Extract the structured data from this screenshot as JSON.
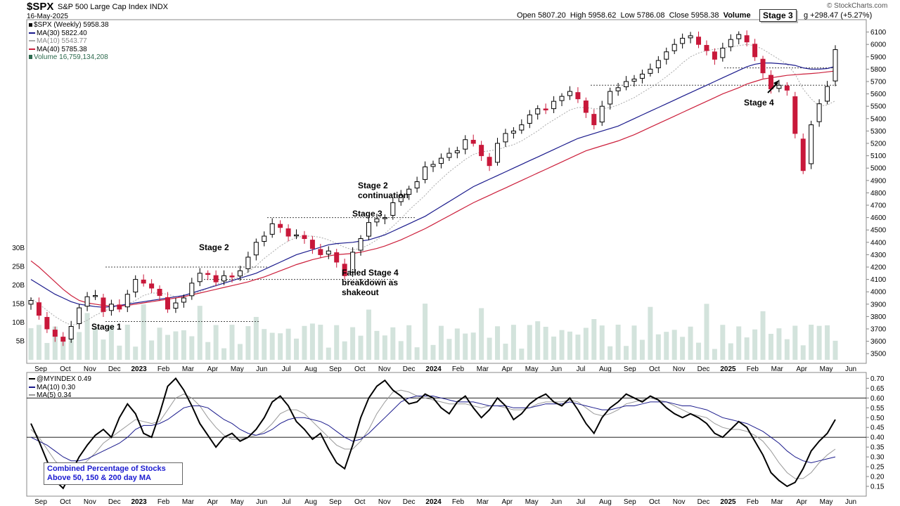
{
  "header": {
    "ticker": "$SPX",
    "name": "S&P 500 Large Cap Index",
    "exchange": "INDX",
    "date": "16-May-2025",
    "open_label": "Open",
    "open": "5807.20",
    "high_label": "High",
    "high": "5958.62",
    "low_label": "Low",
    "low": "5786.08",
    "close_label": "Close",
    "close": "5958.38",
    "volume_label": "Volume",
    "change": "g +298.47 (+5.27%)",
    "watermark": "© StockCharts.com"
  },
  "price_legend": [
    {
      "label": "$SPX (Weekly) 5958.38",
      "color": "#000000"
    },
    {
      "label": "MA(30) 5822.40",
      "color": "#1a1a8c"
    },
    {
      "label": "MA(10) 5543.77",
      "color": "#999999"
    },
    {
      "label": "MA(40) 5785.38",
      "color": "#cc1f3b"
    },
    {
      "label": "Volume 16,759,134,208",
      "color": "#2e6b4f"
    }
  ],
  "annotations": {
    "stage3_box": "Stage 3",
    "stage4_right": "Stage 4",
    "stage2": "Stage 2",
    "stage2_cont_1": "Stage 2",
    "stage2_cont_2": "continuation",
    "stage3_mid": "Stage 3",
    "failed_1": "Failed Stage 4",
    "failed_2": "breakdown as",
    "failed_3": "shakeout",
    "stage1": "Stage 1"
  },
  "indicator_legend": [
    {
      "label": "@MYINDEX 0.49",
      "color": "#000000"
    },
    {
      "label": "MA(10) 0.30",
      "color": "#1a1a8c"
    },
    {
      "label": "MA(5) 0.34",
      "color": "#999999"
    }
  ],
  "indicator_box": {
    "line1": "Combined Percentage of Stocks",
    "line2": "Above 50, 150 & 200 day MA"
  },
  "chart_data": [
    {
      "type": "candlestick",
      "title": "$SPX (Weekly)",
      "ylim": [
        3450,
        6200
      ],
      "y_ticks": [
        3500,
        3600,
        3700,
        3800,
        3900,
        4000,
        4100,
        4200,
        4300,
        4400,
        4500,
        4600,
        4700,
        4800,
        4900,
        5000,
        5100,
        5200,
        5300,
        5400,
        5500,
        5600,
        5700,
        5800,
        5900,
        6000,
        6100
      ],
      "volume_ticks": [
        "5B",
        "10B",
        "15B",
        "20B",
        "25B",
        "30B"
      ],
      "volume_values": [
        5,
        10,
        15,
        20,
        25,
        30
      ],
      "x_labels": [
        "Sep",
        "Oct",
        "Nov",
        "Dec",
        "2023",
        "Feb",
        "Mar",
        "Apr",
        "May",
        "Jun",
        "Jul",
        "Aug",
        "Sep",
        "Oct",
        "Nov",
        "Dec",
        "2024",
        "Feb",
        "Mar",
        "Apr",
        "May",
        "Jun",
        "Jul",
        "Aug",
        "Sep",
        "Oct",
        "Nov",
        "Dec",
        "2025",
        "Feb",
        "Mar",
        "Apr",
        "May",
        "Jun"
      ],
      "close_path": [
        3930,
        3810,
        3700,
        3640,
        3600,
        3720,
        3870,
        3960,
        3970,
        3840,
        3900,
        3860,
        3980,
        4100,
        4070,
        4030,
        3970,
        3860,
        3910,
        3950,
        4070,
        4150,
        4140,
        4080,
        4130,
        4120,
        4170,
        4280,
        4400,
        4450,
        4550,
        4520,
        4450,
        4460,
        4430,
        4350,
        4300,
        4330,
        4240,
        4130,
        4320,
        4430,
        4560,
        4590,
        4600,
        4720,
        4780,
        4830,
        4890,
        5010,
        5030,
        5080,
        5120,
        5140,
        5230,
        5200,
        5100,
        5020,
        5200,
        5280,
        5300,
        5350,
        5430,
        5480,
        5470,
        5540,
        5580,
        5620,
        5560,
        5450,
        5350,
        5500,
        5620,
        5650,
        5700,
        5720,
        5760,
        5800,
        5870,
        5940,
        6000,
        6050,
        6070,
        6000,
        5950,
        5880,
        5970,
        6040,
        6080,
        6020,
        5900,
        5770,
        5640,
        5670,
        5630,
        5280,
        4980,
        5350,
        5520,
        5660,
        5958
      ],
      "ma10": [
        3950,
        3900,
        3850,
        3800,
        3760,
        3730,
        3740,
        3770,
        3810,
        3840,
        3870,
        3890,
        3900,
        3930,
        3970,
        3990,
        3990,
        3980,
        3960,
        3960,
        3980,
        4000,
        4030,
        4060,
        4080,
        4100,
        4120,
        4160,
        4210,
        4270,
        4320,
        4370,
        4410,
        4440,
        4450,
        4450,
        4440,
        4420,
        4390,
        4360,
        4340,
        4350,
        4380,
        4420,
        4470,
        4530,
        4590,
        4660,
        4720,
        4780,
        4850,
        4910,
        4970,
        5020,
        5070,
        5110,
        5130,
        5140,
        5150,
        5170,
        5190,
        5220,
        5260,
        5300,
        5350,
        5390,
        5430,
        5470,
        5490,
        5490,
        5480,
        5480,
        5490,
        5510,
        5540,
        5570,
        5610,
        5650,
        5690,
        5740,
        5790,
        5850,
        5900,
        5930,
        5950,
        5960,
        5970,
        5980,
        5990,
        6000,
        5990,
        5960,
        5920,
        5880,
        5840,
        5760,
        5640,
        5560,
        5500,
        5510,
        5544
      ],
      "ma30": [
        4100,
        4060,
        4020,
        3980,
        3950,
        3920,
        3900,
        3890,
        3880,
        3875,
        3880,
        3890,
        3900,
        3910,
        3920,
        3930,
        3940,
        3950,
        3960,
        3970,
        3990,
        4010,
        4030,
        4050,
        4070,
        4090,
        4110,
        4130,
        4150,
        4180,
        4210,
        4240,
        4270,
        4300,
        4320,
        4340,
        4360,
        4380,
        4390,
        4395,
        4400,
        4410,
        4420,
        4440,
        4460,
        4490,
        4520,
        4550,
        4580,
        4610,
        4650,
        4690,
        4730,
        4770,
        4810,
        4850,
        4880,
        4910,
        4940,
        4970,
        5000,
        5030,
        5060,
        5090,
        5120,
        5150,
        5180,
        5210,
        5240,
        5260,
        5280,
        5300,
        5320,
        5340,
        5370,
        5400,
        5430,
        5460,
        5490,
        5520,
        5550,
        5580,
        5610,
        5640,
        5670,
        5700,
        5730,
        5760,
        5790,
        5820,
        5840,
        5850,
        5850,
        5845,
        5840,
        5830,
        5810,
        5800,
        5800,
        5805,
        5822
      ],
      "ma40": [
        4250,
        4200,
        4140,
        4080,
        4020,
        3970,
        3930,
        3910,
        3900,
        3890,
        3885,
        3885,
        3890,
        3900,
        3910,
        3920,
        3930,
        3940,
        3950,
        3960,
        3975,
        3990,
        4005,
        4020,
        4035,
        4050,
        4065,
        4080,
        4100,
        4120,
        4145,
        4170,
        4195,
        4220,
        4240,
        4260,
        4275,
        4290,
        4300,
        4305,
        4310,
        4320,
        4335,
        4350,
        4370,
        4395,
        4420,
        4450,
        4480,
        4510,
        4545,
        4580,
        4615,
        4650,
        4685,
        4720,
        4750,
        4780,
        4810,
        4840,
        4870,
        4900,
        4930,
        4960,
        4990,
        5020,
        5050,
        5080,
        5110,
        5140,
        5160,
        5180,
        5200,
        5220,
        5245,
        5270,
        5300,
        5330,
        5360,
        5390,
        5420,
        5450,
        5480,
        5510,
        5540,
        5570,
        5600,
        5625,
        5650,
        5680,
        5700,
        5720,
        5730,
        5740,
        5750,
        5755,
        5760,
        5765,
        5770,
        5778,
        5785
      ],
      "horizontal_levels": [
        4200,
        4100,
        3760,
        4600,
        5670,
        5810
      ]
    },
    {
      "type": "line",
      "title": "@MYINDEX",
      "ylim": [
        0.1,
        0.73
      ],
      "y_ticks": [
        0.15,
        0.2,
        0.25,
        0.3,
        0.35,
        0.4,
        0.45,
        0.5,
        0.55,
        0.6,
        0.65,
        0.7
      ],
      "reference_lines": [
        0.6,
        0.4
      ],
      "series": [
        {
          "name": "@MYINDEX",
          "values": [
            0.47,
            0.38,
            0.28,
            0.18,
            0.14,
            0.22,
            0.3,
            0.36,
            0.41,
            0.44,
            0.4,
            0.5,
            0.57,
            0.52,
            0.42,
            0.4,
            0.52,
            0.66,
            0.7,
            0.64,
            0.56,
            0.47,
            0.41,
            0.35,
            0.4,
            0.42,
            0.38,
            0.4,
            0.44,
            0.5,
            0.58,
            0.61,
            0.56,
            0.48,
            0.44,
            0.39,
            0.42,
            0.34,
            0.27,
            0.24,
            0.36,
            0.5,
            0.6,
            0.66,
            0.69,
            0.64,
            0.61,
            0.57,
            0.58,
            0.62,
            0.6,
            0.55,
            0.52,
            0.58,
            0.61,
            0.55,
            0.5,
            0.54,
            0.6,
            0.56,
            0.49,
            0.52,
            0.57,
            0.6,
            0.62,
            0.58,
            0.56,
            0.6,
            0.54,
            0.47,
            0.42,
            0.5,
            0.55,
            0.58,
            0.62,
            0.6,
            0.58,
            0.61,
            0.59,
            0.55,
            0.52,
            0.5,
            0.52,
            0.5,
            0.47,
            0.42,
            0.4,
            0.44,
            0.48,
            0.45,
            0.38,
            0.31,
            0.22,
            0.18,
            0.15,
            0.17,
            0.24,
            0.33,
            0.38,
            0.42,
            0.49
          ]
        },
        {
          "name": "MA(10)",
          "values": [
            0.4,
            0.38,
            0.36,
            0.33,
            0.3,
            0.28,
            0.28,
            0.29,
            0.31,
            0.33,
            0.35,
            0.37,
            0.4,
            0.44,
            0.46,
            0.46,
            0.47,
            0.49,
            0.52,
            0.55,
            0.56,
            0.56,
            0.55,
            0.52,
            0.49,
            0.47,
            0.44,
            0.42,
            0.41,
            0.42,
            0.44,
            0.47,
            0.49,
            0.5,
            0.5,
            0.49,
            0.48,
            0.46,
            0.43,
            0.4,
            0.38,
            0.39,
            0.42,
            0.46,
            0.5,
            0.54,
            0.58,
            0.6,
            0.61,
            0.61,
            0.61,
            0.6,
            0.59,
            0.58,
            0.58,
            0.58,
            0.57,
            0.56,
            0.56,
            0.56,
            0.55,
            0.55,
            0.55,
            0.56,
            0.57,
            0.57,
            0.57,
            0.58,
            0.57,
            0.56,
            0.55,
            0.54,
            0.54,
            0.55,
            0.56,
            0.56,
            0.57,
            0.58,
            0.58,
            0.58,
            0.57,
            0.56,
            0.56,
            0.55,
            0.54,
            0.52,
            0.5,
            0.49,
            0.48,
            0.47,
            0.45,
            0.43,
            0.4,
            0.37,
            0.33,
            0.3,
            0.28,
            0.27,
            0.28,
            0.29,
            0.3
          ]
        },
        {
          "name": "MA(5)",
          "values": [
            0.44,
            0.4,
            0.34,
            0.28,
            0.24,
            0.22,
            0.24,
            0.28,
            0.32,
            0.37,
            0.4,
            0.43,
            0.46,
            0.49,
            0.48,
            0.47,
            0.48,
            0.54,
            0.6,
            0.62,
            0.6,
            0.56,
            0.5,
            0.45,
            0.41,
            0.39,
            0.39,
            0.4,
            0.41,
            0.43,
            0.47,
            0.52,
            0.54,
            0.54,
            0.52,
            0.48,
            0.44,
            0.4,
            0.36,
            0.34,
            0.34,
            0.38,
            0.44,
            0.52,
            0.58,
            0.63,
            0.64,
            0.63,
            0.61,
            0.6,
            0.59,
            0.58,
            0.57,
            0.57,
            0.57,
            0.56,
            0.55,
            0.56,
            0.56,
            0.55,
            0.54,
            0.54,
            0.55,
            0.57,
            0.58,
            0.58,
            0.58,
            0.59,
            0.58,
            0.55,
            0.52,
            0.51,
            0.52,
            0.54,
            0.57,
            0.58,
            0.59,
            0.6,
            0.59,
            0.58,
            0.56,
            0.54,
            0.52,
            0.51,
            0.5,
            0.47,
            0.45,
            0.44,
            0.44,
            0.43,
            0.41,
            0.38,
            0.33,
            0.27,
            0.22,
            0.19,
            0.19,
            0.22,
            0.27,
            0.31,
            0.34
          ]
        }
      ]
    }
  ]
}
